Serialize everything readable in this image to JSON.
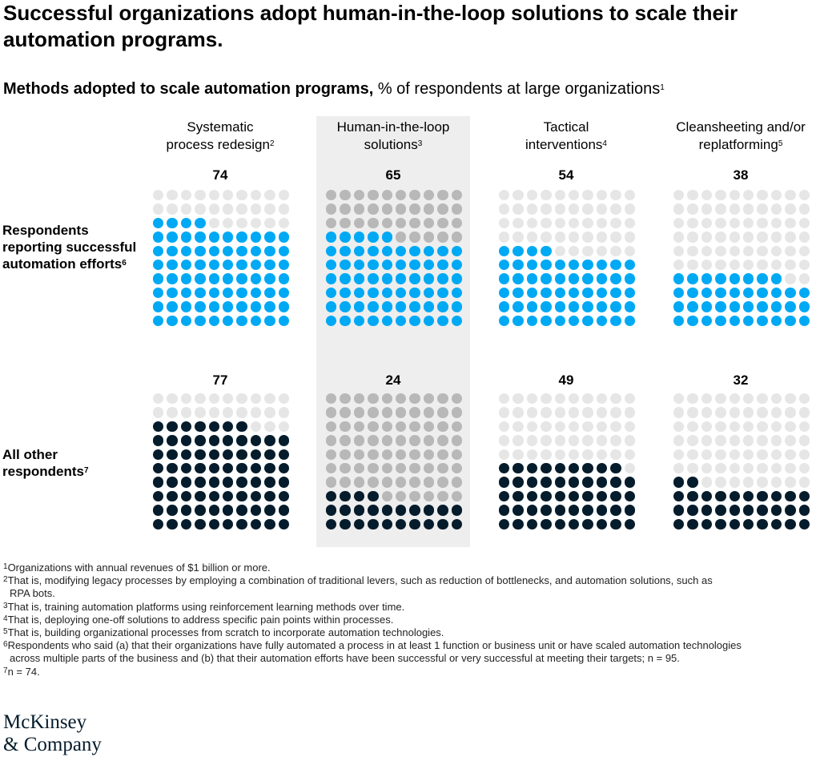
{
  "title": "Successful organizations adopt human-in-the-loop solutions to scale their automation programs.",
  "subtitle": {
    "bold": "Methods adopted to scale automation programs,",
    "rest": " % of respondents at large organizations",
    "sup": "1"
  },
  "colors": {
    "successful": "#00a9f4",
    "other": "#051c2c",
    "empty_light": "#e6e6e6",
    "empty_highlight": "#b8b8b8"
  },
  "row_labels": [
    {
      "text": "Respondents reporting successful automation efforts",
      "sup": "6"
    },
    {
      "text": "All other respondents",
      "sup": "7"
    }
  ],
  "column_headers": [
    {
      "line1": "Systematic",
      "line2": "process redesign",
      "sup": "2"
    },
    {
      "line1": "Human-in-the-loop",
      "line2": "solutions",
      "sup": "3"
    },
    {
      "line1": "Tactical",
      "line2": "interventions",
      "sup": "4"
    },
    {
      "line1": "Cleansheeting and/or",
      "line2": "replatforming",
      "sup": "5"
    }
  ],
  "chart_data": {
    "type": "waffle",
    "title": "Methods adopted to scale automation programs, % of respondents at large organizations",
    "categories": [
      "Systematic process redesign",
      "Human-in-the-loop solutions",
      "Tactical interventions",
      "Cleansheeting and/or replatforming"
    ],
    "series": [
      {
        "name": "Respondents reporting successful automation efforts",
        "values": [
          74,
          65,
          54,
          38
        ]
      },
      {
        "name": "All other respondents",
        "values": [
          77,
          24,
          49,
          32
        ]
      }
    ],
    "highlighted_category": "Human-in-the-loop solutions",
    "ylim": [
      0,
      100
    ]
  },
  "footnotes": [
    {
      "sup": "1",
      "text": "Organizations with annual revenues of $1 billion or more."
    },
    {
      "sup": "2",
      "text": "That is, modifying legacy processes by employing a combination of traditional levers, such as reduction of bottlenecks, and automation solutions, such as",
      "cont": "RPA bots."
    },
    {
      "sup": "3",
      "text": "That is, training automation platforms using reinforcement learning methods over time."
    },
    {
      "sup": "4",
      "text": "That is, deploying one-off solutions to address specific pain points within processes."
    },
    {
      "sup": "5",
      "text": "That is, building organizational processes from scratch to incorporate automation technologies."
    },
    {
      "sup": "6",
      "text": "Respondents who said (a) that their organizations have fully automated a process in at least 1 function or business unit or have scaled automation technologies",
      "cont": "across multiple parts of the business and (b) that their automation efforts have been successful or very successful at meeting their targets; n = 95."
    },
    {
      "sup": "7",
      "text": "n = 74."
    }
  ],
  "logo": {
    "line1": "McKinsey",
    "line2": "& Company"
  }
}
